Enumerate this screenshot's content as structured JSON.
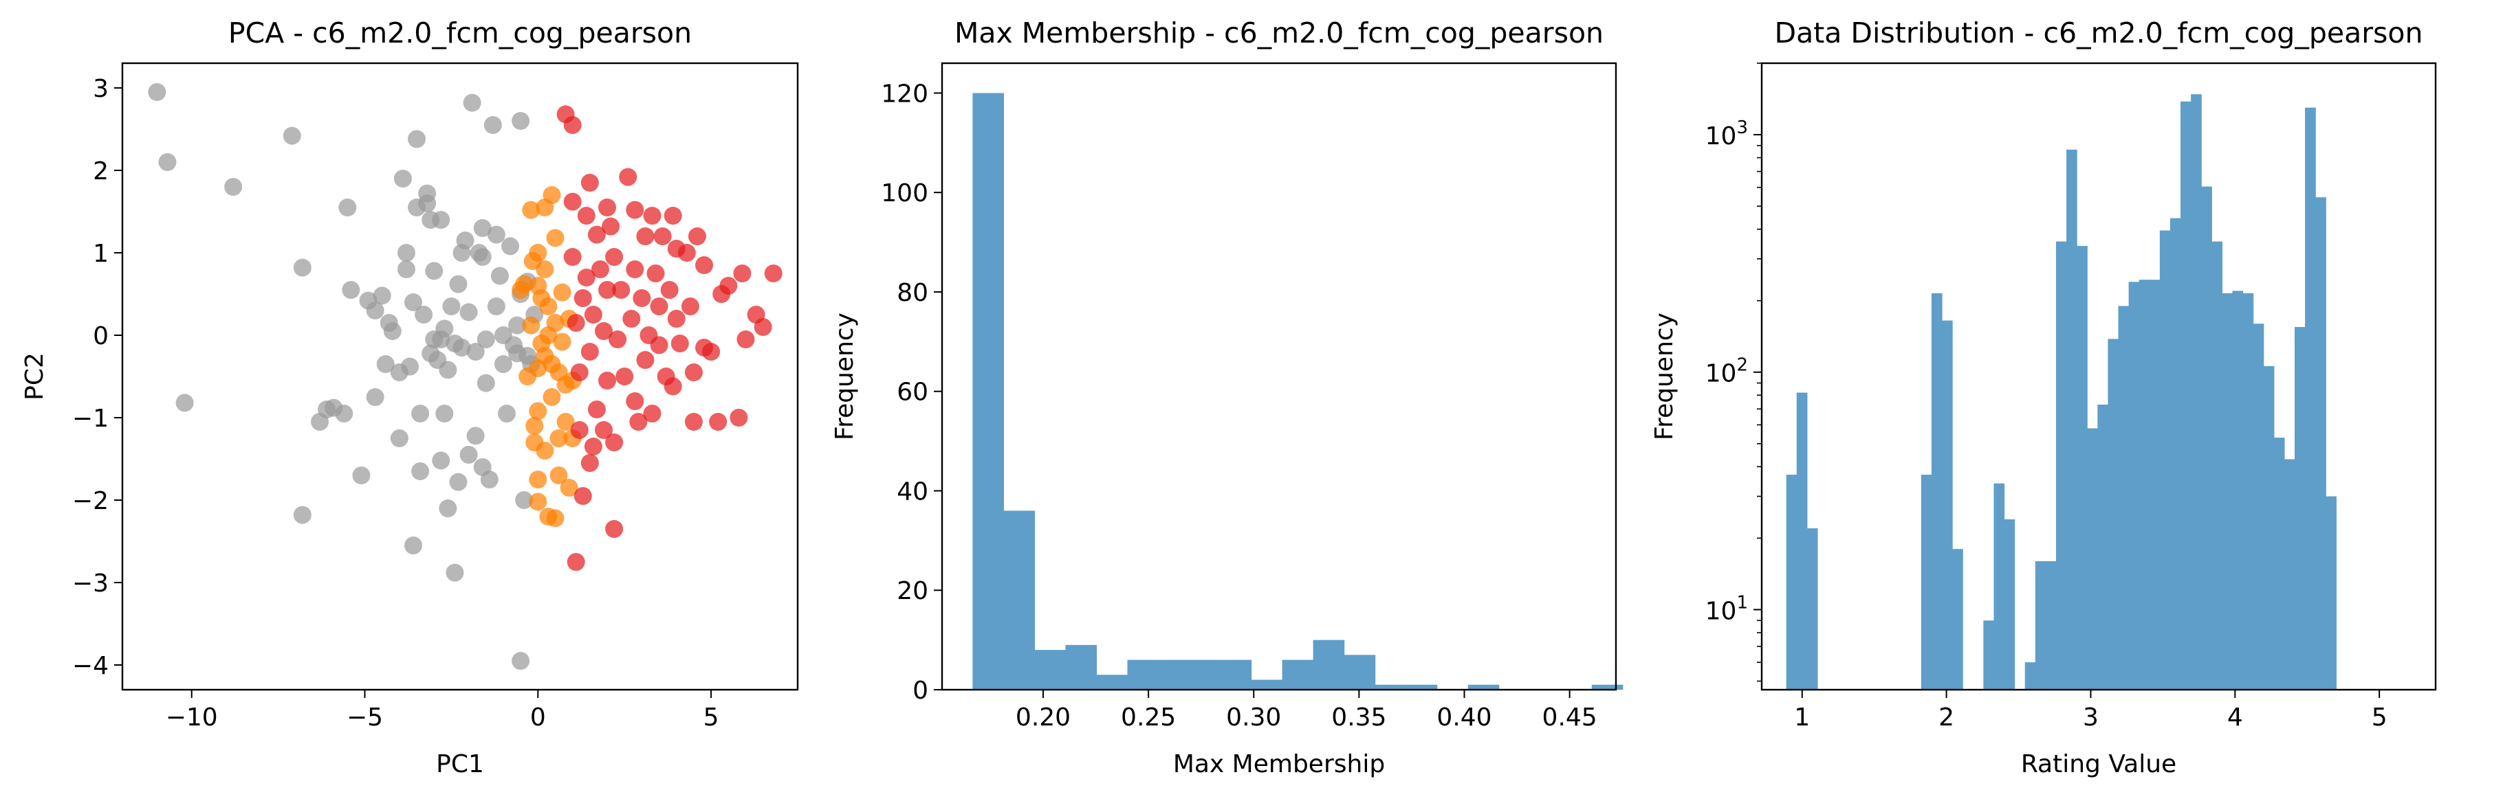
{
  "figure": {
    "background": "#ffffff"
  },
  "chart_data": [
    {
      "type": "scatter",
      "title": "PCA - c6_m2.0_fcm_cog_pearson",
      "xlabel": "PC1",
      "ylabel": "PC2",
      "xlim": [
        -12,
        7.5
      ],
      "ylim": [
        -4.3,
        3.3
      ],
      "xticks": [
        -10,
        -5,
        0,
        5
      ],
      "yticks": [
        -4,
        -3,
        -2,
        -1,
        0,
        1,
        2,
        3
      ],
      "grid": false,
      "series": [
        {
          "color": "#999999",
          "points": [
            [
              -11.0,
              2.95
            ],
            [
              -10.7,
              2.1
            ],
            [
              -10.2,
              -0.82
            ],
            [
              -8.8,
              1.8
            ],
            [
              -7.1,
              2.42
            ],
            [
              -6.8,
              0.82
            ],
            [
              -6.8,
              -2.18
            ],
            [
              -6.3,
              -1.05
            ],
            [
              -6.1,
              -0.9
            ],
            [
              -5.9,
              -0.88
            ],
            [
              -5.6,
              -0.95
            ],
            [
              -5.5,
              1.55
            ],
            [
              -5.4,
              0.55
            ],
            [
              -5.1,
              -1.7
            ],
            [
              -4.9,
              0.42
            ],
            [
              -4.7,
              0.3
            ],
            [
              -4.7,
              -0.75
            ],
            [
              -4.5,
              0.48
            ],
            [
              -4.4,
              -0.35
            ],
            [
              -4.3,
              0.15
            ],
            [
              -4.2,
              0.05
            ],
            [
              -4.0,
              -0.45
            ],
            [
              -4.0,
              -1.25
            ],
            [
              -3.9,
              1.9
            ],
            [
              -3.8,
              0.8
            ],
            [
              -3.8,
              1.0
            ],
            [
              -3.7,
              -0.38
            ],
            [
              -3.6,
              0.4
            ],
            [
              -3.6,
              -2.55
            ],
            [
              -3.5,
              2.38
            ],
            [
              -3.5,
              1.55
            ],
            [
              -3.4,
              -0.95
            ],
            [
              -3.4,
              -1.65
            ],
            [
              -3.2,
              1.6
            ],
            [
              -3.2,
              1.72
            ],
            [
              -3.1,
              -0.22
            ],
            [
              -3.1,
              1.4
            ],
            [
              -3.0,
              0.78
            ],
            [
              -3.0,
              -0.05
            ],
            [
              -2.9,
              -0.3
            ],
            [
              -2.8,
              -0.05
            ],
            [
              -2.8,
              1.4
            ],
            [
              -2.8,
              -1.52
            ],
            [
              -2.7,
              0.08
            ],
            [
              -2.7,
              -0.95
            ],
            [
              -2.6,
              -0.42
            ],
            [
              -2.6,
              -2.1
            ],
            [
              -2.5,
              0.35
            ],
            [
              -2.4,
              -2.88
            ],
            [
              -2.4,
              -0.1
            ],
            [
              -2.3,
              -1.78
            ],
            [
              -2.3,
              0.62
            ],
            [
              -2.2,
              -0.15
            ],
            [
              -2.1,
              1.15
            ],
            [
              -2.0,
              0.28
            ],
            [
              -2.0,
              -1.45
            ],
            [
              -1.9,
              2.82
            ],
            [
              -1.8,
              -0.2
            ],
            [
              -1.8,
              -1.22
            ],
            [
              -1.7,
              1.0
            ],
            [
              -1.6,
              0.95
            ],
            [
              -1.6,
              1.3
            ],
            [
              -1.5,
              -0.58
            ],
            [
              -1.5,
              -0.05
            ],
            [
              -1.4,
              -1.75
            ],
            [
              -1.3,
              2.55
            ],
            [
              -1.2,
              1.22
            ],
            [
              -1.2,
              0.35
            ],
            [
              -1.1,
              0.72
            ],
            [
              -1.0,
              -0.35
            ],
            [
              -1.0,
              0.0
            ],
            [
              -0.9,
              -0.95
            ],
            [
              -0.8,
              1.08
            ],
            [
              -0.7,
              -0.12
            ],
            [
              -0.6,
              -0.22
            ],
            [
              -0.6,
              0.12
            ],
            [
              -0.5,
              2.6
            ],
            [
              -0.5,
              0.5
            ],
            [
              -0.5,
              -3.95
            ],
            [
              -0.4,
              -2.0
            ],
            [
              -0.3,
              0.65
            ],
            [
              -0.3,
              -0.25
            ],
            [
              -0.2,
              -0.35
            ],
            [
              -0.1,
              0.25
            ],
            [
              -1.6,
              -1.6
            ],
            [
              -2.2,
              1.0
            ],
            [
              -3.3,
              0.25
            ]
          ]
        },
        {
          "color": "#ff7f00",
          "points": [
            [
              -0.5,
              0.55
            ],
            [
              -0.4,
              0.62
            ],
            [
              -0.3,
              -0.5
            ],
            [
              -0.2,
              1.52
            ],
            [
              -0.2,
              0.12
            ],
            [
              -0.1,
              -1.1
            ],
            [
              -0.1,
              -1.3
            ],
            [
              0.0,
              -0.4
            ],
            [
              0.0,
              -0.92
            ],
            [
              0.0,
              -1.75
            ],
            [
              0.0,
              -2.02
            ],
            [
              0.0,
              1.0
            ],
            [
              0.1,
              0.45
            ],
            [
              0.1,
              -0.1
            ],
            [
              0.2,
              1.55
            ],
            [
              0.2,
              0.8
            ],
            [
              0.2,
              -0.25
            ],
            [
              0.2,
              -1.4
            ],
            [
              0.3,
              0.35
            ],
            [
              0.3,
              0.0
            ],
            [
              0.3,
              -2.2
            ],
            [
              0.4,
              1.7
            ],
            [
              0.4,
              -0.35
            ],
            [
              0.4,
              -0.75
            ],
            [
              0.5,
              1.18
            ],
            [
              0.5,
              0.15
            ],
            [
              0.5,
              -2.22
            ],
            [
              0.6,
              -0.45
            ],
            [
              0.6,
              -1.25
            ],
            [
              0.6,
              -1.7
            ],
            [
              0.7,
              0.52
            ],
            [
              0.7,
              -0.08
            ],
            [
              0.8,
              -0.6
            ],
            [
              0.8,
              -1.05
            ],
            [
              0.9,
              0.2
            ],
            [
              0.9,
              -1.85
            ],
            [
              1.0,
              -0.55
            ],
            [
              1.0,
              -1.25
            ],
            [
              0.0,
              0.6
            ],
            [
              -0.15,
              0.9
            ]
          ]
        },
        {
          "color": "#e41a1c",
          "points": [
            [
              0.8,
              2.68
            ],
            [
              1.0,
              2.55
            ],
            [
              1.0,
              1.62
            ],
            [
              1.0,
              0.95
            ],
            [
              1.1,
              -2.75
            ],
            [
              1.1,
              0.15
            ],
            [
              1.2,
              -0.45
            ],
            [
              1.2,
              -1.15
            ],
            [
              1.3,
              -1.95
            ],
            [
              1.3,
              0.45
            ],
            [
              1.4,
              1.45
            ],
            [
              1.4,
              0.7
            ],
            [
              1.5,
              -1.55
            ],
            [
              1.5,
              -0.2
            ],
            [
              1.5,
              1.85
            ],
            [
              1.6,
              -1.35
            ],
            [
              1.6,
              0.25
            ],
            [
              1.7,
              -0.9
            ],
            [
              1.7,
              1.22
            ],
            [
              1.8,
              0.8
            ],
            [
              1.9,
              -1.15
            ],
            [
              1.9,
              0.05
            ],
            [
              2.0,
              1.55
            ],
            [
              2.0,
              0.55
            ],
            [
              2.0,
              -0.55
            ],
            [
              2.1,
              1.32
            ],
            [
              2.2,
              -2.35
            ],
            [
              2.2,
              0.95
            ],
            [
              2.2,
              -1.3
            ],
            [
              2.3,
              -0.05
            ],
            [
              2.4,
              0.55
            ],
            [
              2.5,
              -0.5
            ],
            [
              2.6,
              1.92
            ],
            [
              2.7,
              0.2
            ],
            [
              2.8,
              0.8
            ],
            [
              2.8,
              -0.8
            ],
            [
              2.8,
              1.52
            ],
            [
              2.9,
              -1.05
            ],
            [
              3.0,
              0.45
            ],
            [
              3.1,
              1.2
            ],
            [
              3.1,
              -0.3
            ],
            [
              3.2,
              0.0
            ],
            [
              3.3,
              1.45
            ],
            [
              3.3,
              -0.95
            ],
            [
              3.4,
              0.75
            ],
            [
              3.5,
              0.35
            ],
            [
              3.5,
              -0.12
            ],
            [
              3.6,
              1.2
            ],
            [
              3.7,
              -0.5
            ],
            [
              3.8,
              0.55
            ],
            [
              3.9,
              1.45
            ],
            [
              4.0,
              0.2
            ],
            [
              4.0,
              1.05
            ],
            [
              4.1,
              -0.1
            ],
            [
              4.3,
              1.0
            ],
            [
              4.4,
              0.35
            ],
            [
              4.5,
              -0.45
            ],
            [
              4.5,
              -1.05
            ],
            [
              4.6,
              1.2
            ],
            [
              4.8,
              0.85
            ],
            [
              5.0,
              -0.2
            ],
            [
              5.2,
              -1.05
            ],
            [
              5.3,
              0.5
            ],
            [
              5.5,
              0.6
            ],
            [
              5.8,
              -1.0
            ],
            [
              5.9,
              0.75
            ],
            [
              6.0,
              -0.05
            ],
            [
              6.3,
              0.25
            ],
            [
              6.5,
              0.1
            ],
            [
              6.8,
              0.75
            ],
            [
              3.9,
              -0.62
            ],
            [
              4.8,
              -0.15
            ]
          ]
        }
      ]
    },
    {
      "type": "bar",
      "title": "Max Membership - c6_m2.0_fcm_cog_pearson",
      "xlabel": "Max Membership",
      "ylabel": "Frequency",
      "xlim": [
        0.152,
        0.472
      ],
      "ylim": [
        0,
        126
      ],
      "xticks": [
        0.2,
        0.25,
        0.3,
        0.35,
        0.4,
        0.45
      ],
      "xtick_labels": [
        "0.20",
        "0.25",
        "0.30",
        "0.35",
        "0.40",
        "0.45"
      ],
      "yticks": [
        0,
        20,
        40,
        60,
        80,
        100,
        120
      ],
      "color": "#5f9ec9",
      "bin_start": 0.1665,
      "bin_width": 0.0147,
      "values": [
        120,
        36,
        8,
        9,
        3,
        6,
        6,
        6,
        6,
        2,
        6,
        10,
        7,
        1,
        1,
        0,
        1,
        0,
        0,
        0,
        1
      ]
    },
    {
      "type": "bar",
      "title": "Data Distribution - c6_m2.0_fcm_cog_pearson",
      "xlabel": "Rating Value",
      "ylabel": "Frequency",
      "xlim": [
        0.72,
        5.39
      ],
      "ylog": true,
      "ylim": [
        4.6,
        2000
      ],
      "xticks": [
        1,
        2,
        3,
        4,
        5
      ],
      "yticks": [
        10,
        100,
        1000
      ],
      "ytick_labels": [
        "10^1",
        "10^2",
        "10^3"
      ],
      "color": "#5f9ec9",
      "bin_start": 0.89,
      "bin_width": 0.0719,
      "values": [
        37,
        82,
        22,
        0,
        0,
        0,
        0,
        0,
        0,
        0,
        0,
        0,
        0,
        37,
        215,
        165,
        18,
        0,
        0,
        9,
        34,
        24,
        0,
        6,
        16,
        16,
        355,
        865,
        340,
        58,
        73,
        138,
        190,
        240,
        245,
        245,
        395,
        445,
        1380,
        1480,
        605,
        355,
        215,
        220,
        215,
        160,
        106,
        53,
        43,
        155,
        1300,
        545,
        30
      ]
    }
  ]
}
